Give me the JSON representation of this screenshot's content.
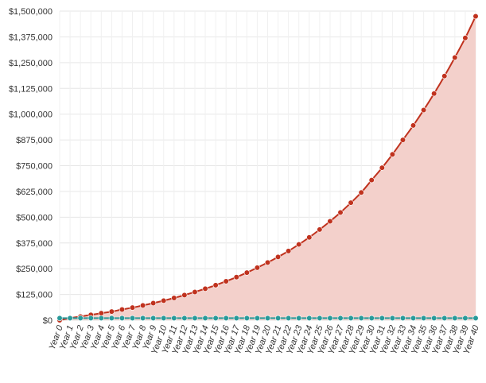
{
  "chart_data": {
    "type": "line",
    "x": [
      "Year 0",
      "Year 1",
      "Year 2",
      "Year 3",
      "Year 4",
      "Year 5",
      "Year 6",
      "Year 7",
      "Year 8",
      "Year 9",
      "Year 10",
      "Year 11",
      "Year 12",
      "Year 13",
      "Year 14",
      "Year 15",
      "Year 16",
      "Year 17",
      "Year 18",
      "Year 19",
      "Year 20",
      "Year 21",
      "Year 22",
      "Year 23",
      "Year 24",
      "Year 25",
      "Year 26",
      "Year 27",
      "Year 28",
      "Year 29",
      "Year 30",
      "Year 31",
      "Year 32",
      "Year 33",
      "Year 34",
      "Year 35",
      "Year 36",
      "Year 37",
      "Year 38",
      "Year 39",
      "Year 40"
    ],
    "yticks": [
      0,
      125000,
      250000,
      375000,
      500000,
      625000,
      750000,
      875000,
      1000000,
      1125000,
      1250000,
      1375000,
      1500000
    ],
    "ytick_labels": [
      "$0",
      "$125,000",
      "$250,000",
      "$375,000",
      "$500,000",
      "$625,000",
      "$750,000",
      "$875,000",
      "$1,000,000",
      "$1,125,000",
      "$1,250,000",
      "$1,375,000",
      "$1,500,000"
    ],
    "ylim": [
      0,
      1500000
    ],
    "grid": true,
    "series": [
      {
        "color": "#c0321e",
        "fill": "#f3d0cb",
        "values": [
          0,
          10000,
          18000,
          26000,
          34000,
          42000,
          52000,
          61000,
          72000,
          83000,
          95000,
          108000,
          122000,
          137000,
          153000,
          170000,
          189000,
          209000,
          231000,
          255000,
          280000,
          307000,
          336000,
          368000,
          402000,
          440000,
          480000,
          523000,
          570000,
          620000,
          680000,
          740000,
          805000,
          875000,
          945000,
          1020000,
          1100000,
          1185000,
          1275000,
          1370000,
          1475000
        ]
      },
      {
        "color": "#2a9a9a",
        "values": [
          10000,
          10000,
          10000,
          10000,
          10000,
          10000,
          10000,
          10000,
          10000,
          10000,
          10000,
          10000,
          10000,
          10000,
          10000,
          10000,
          10000,
          10000,
          10000,
          10000,
          10000,
          10000,
          10000,
          10000,
          10000,
          10000,
          10000,
          10000,
          10000,
          10000,
          10000,
          10000,
          10000,
          10000,
          10000,
          10000,
          10000,
          10000,
          10000,
          10000,
          10000
        ]
      }
    ]
  }
}
